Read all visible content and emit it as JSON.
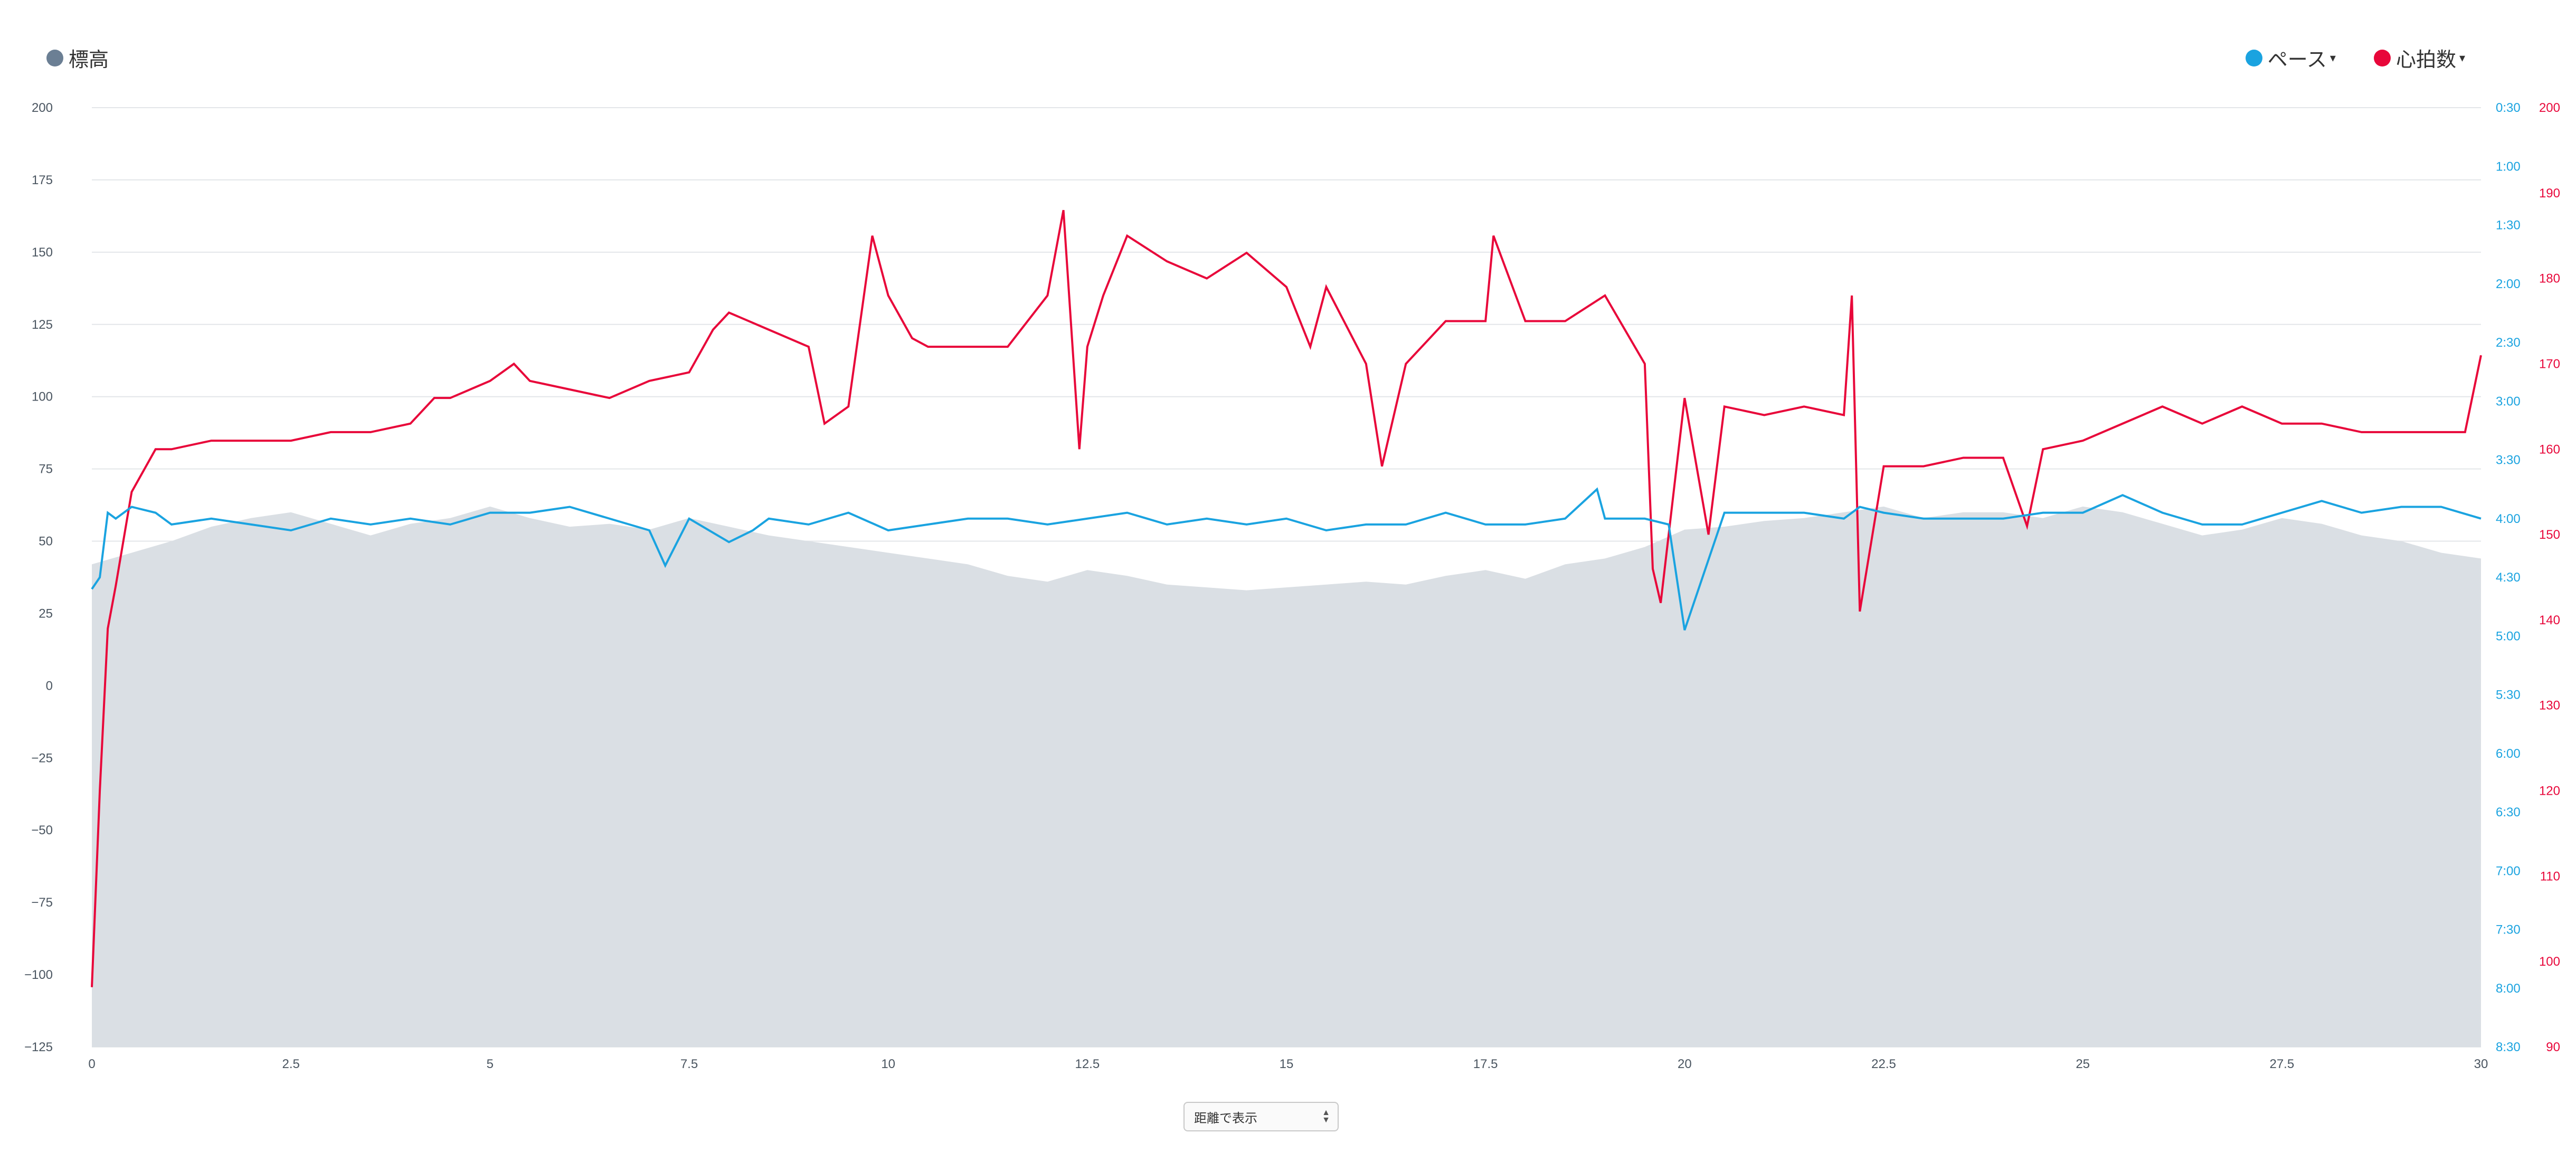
{
  "legend": {
    "elevation": {
      "label": "標高",
      "color": "#6b7f94"
    },
    "pace": {
      "label": "ペース",
      "color": "#1aa3e0",
      "caret": "▾"
    },
    "heart_rate": {
      "label": "心拍数",
      "color": "#e8073a",
      "caret": "▾"
    }
  },
  "select": {
    "label": "距離で表示"
  },
  "chart_data": {
    "type": "line",
    "x_ticks": [
      "0",
      "2.5",
      "5",
      "7.5",
      "10",
      "12.5",
      "15",
      "17.5",
      "20",
      "22.5",
      "25",
      "27.5",
      "30"
    ],
    "xlim": [
      0,
      30
    ],
    "elevation_axis": {
      "ticks": [
        "200",
        "175",
        "150",
        "125",
        "100",
        "75",
        "50",
        "25",
        "0",
        "−25",
        "−50",
        "−75",
        "−100",
        "−125"
      ],
      "ylim": [
        -125,
        200
      ],
      "color": "#4a5560"
    },
    "pace_axis": {
      "ticks": [
        "0:30",
        "1:00",
        "1:30",
        "2:00",
        "2:30",
        "3:00",
        "3:30",
        "4:00",
        "4:30",
        "5:00",
        "5:30",
        "6:00",
        "6:30",
        "7:00",
        "7:30",
        "8:00",
        "8:30"
      ],
      "ylim_minutes": [
        8.5,
        0.5
      ],
      "color": "#1aa3e0"
    },
    "hr_axis": {
      "ticks": [
        "200",
        "190",
        "180",
        "170",
        "160",
        "150",
        "140",
        "130",
        "120",
        "110",
        "100",
        "90"
      ],
      "ylim": [
        90,
        200
      ],
      "color": "#e8073a"
    },
    "grid": true,
    "legend_position": "top",
    "series": [
      {
        "name": "標高",
        "type": "area",
        "color": "#dadfe4",
        "x": [
          0,
          0.5,
          1,
          1.5,
          2,
          2.5,
          3,
          3.5,
          4,
          4.5,
          5,
          5.5,
          6,
          6.5,
          7,
          7.5,
          8,
          8.5,
          9,
          9.5,
          10,
          10.5,
          11,
          11.5,
          12,
          12.5,
          13,
          13.5,
          14,
          14.5,
          15,
          15.5,
          16,
          16.5,
          17,
          17.5,
          18,
          18.5,
          19,
          19.5,
          20,
          20.5,
          21,
          21.5,
          22,
          22.5,
          23,
          23.5,
          24,
          24.5,
          25,
          25.5,
          26,
          26.5,
          27,
          27.5,
          28,
          28.5,
          29,
          29.5,
          30
        ],
        "y": [
          42,
          46,
          50,
          55,
          58,
          60,
          56,
          52,
          56,
          58,
          62,
          58,
          55,
          56,
          54,
          58,
          55,
          52,
          50,
          48,
          46,
          44,
          42,
          38,
          36,
          40,
          38,
          35,
          34,
          33,
          34,
          35,
          36,
          35,
          38,
          40,
          37,
          42,
          44,
          48,
          54,
          55,
          57,
          58,
          60,
          62,
          58,
          60,
          60,
          58,
          62,
          60,
          56,
          52,
          54,
          58,
          56,
          52,
          50,
          46,
          44
        ]
      },
      {
        "name": "ペース",
        "type": "line",
        "color": "#1aa3e0",
        "x": [
          0,
          0.1,
          0.2,
          0.3,
          0.5,
          0.8,
          1,
          1.5,
          2,
          2.5,
          3,
          3.5,
          4,
          4.5,
          5,
          5.5,
          6,
          6.5,
          7,
          7.2,
          7.5,
          8,
          8.3,
          8.5,
          9,
          9.5,
          10,
          10.5,
          11,
          11.5,
          12,
          12.5,
          13,
          13.5,
          14,
          14.5,
          15,
          15.5,
          16,
          16.5,
          17,
          17.5,
          18,
          18.5,
          18.9,
          19,
          19.5,
          19.8,
          20,
          20.5,
          21,
          21.5,
          22,
          22.2,
          22.5,
          23,
          23.5,
          24,
          24.5,
          25,
          25.5,
          26,
          26.5,
          27,
          27.5,
          28,
          28.5,
          29,
          29.5,
          30
        ],
        "y_minutes": [
          4.6,
          4.5,
          3.95,
          4.0,
          3.9,
          3.95,
          4.05,
          4.0,
          4.05,
          4.1,
          4.0,
          4.05,
          4.0,
          4.05,
          3.95,
          3.95,
          3.9,
          4.0,
          4.1,
          4.4,
          4.0,
          4.2,
          4.1,
          4.0,
          4.05,
          3.95,
          4.1,
          4.05,
          4.0,
          4.0,
          4.05,
          4.0,
          3.95,
          4.05,
          4.0,
          4.05,
          4.0,
          4.1,
          4.05,
          4.05,
          3.95,
          4.05,
          4.05,
          4.0,
          3.75,
          4.0,
          4.0,
          4.05,
          4.95,
          3.95,
          3.95,
          3.95,
          4.0,
          3.9,
          3.95,
          4.0,
          4.0,
          4.0,
          3.95,
          3.95,
          3.8,
          3.95,
          4.05,
          4.05,
          3.95,
          3.85,
          3.95,
          3.9,
          3.9,
          4.0
        ]
      },
      {
        "name": "心拍数",
        "type": "line",
        "color": "#e8073a",
        "x": [
          0,
          0.1,
          0.2,
          0.3,
          0.5,
          0.8,
          1,
          1.5,
          2,
          2.5,
          3,
          3.5,
          4,
          4.3,
          4.5,
          5,
          5.3,
          5.5,
          6,
          6.5,
          7,
          7.5,
          7.8,
          8,
          8.5,
          9,
          9.2,
          9.5,
          9.8,
          10,
          10.3,
          10.5,
          11,
          11.5,
          12,
          12.2,
          12.4,
          12.5,
          12.7,
          13,
          13.5,
          14,
          14.5,
          15,
          15.3,
          15.5,
          16,
          16.2,
          16.5,
          17,
          17.5,
          17.6,
          18,
          18.5,
          19,
          19.5,
          19.6,
          19.7,
          20,
          20.3,
          20.5,
          21,
          21.5,
          22,
          22.1,
          22.2,
          22.5,
          23,
          23.5,
          24,
          24.3,
          24.5,
          25,
          25.5,
          26,
          26.5,
          27,
          27.5,
          28,
          28.5,
          29,
          29.5,
          29.8,
          30
        ],
        "y": [
          97,
          120,
          139,
          144,
          155,
          160,
          160,
          161,
          161,
          161,
          162,
          162,
          163,
          166,
          166,
          168,
          170,
          168,
          167,
          166,
          168,
          169,
          174,
          176,
          174,
          172,
          163,
          165,
          185,
          178,
          173,
          172,
          172,
          172,
          178,
          188,
          160,
          172,
          178,
          185,
          182,
          180,
          183,
          179,
          172,
          179,
          170,
          158,
          170,
          175,
          175,
          185,
          175,
          175,
          178,
          170,
          146,
          142,
          166,
          150,
          165,
          164,
          165,
          164,
          178,
          141,
          158,
          158,
          159,
          159,
          151,
          160,
          161,
          163,
          165,
          163,
          165,
          163,
          163,
          162,
          162,
          162,
          162,
          171
        ]
      }
    ]
  }
}
